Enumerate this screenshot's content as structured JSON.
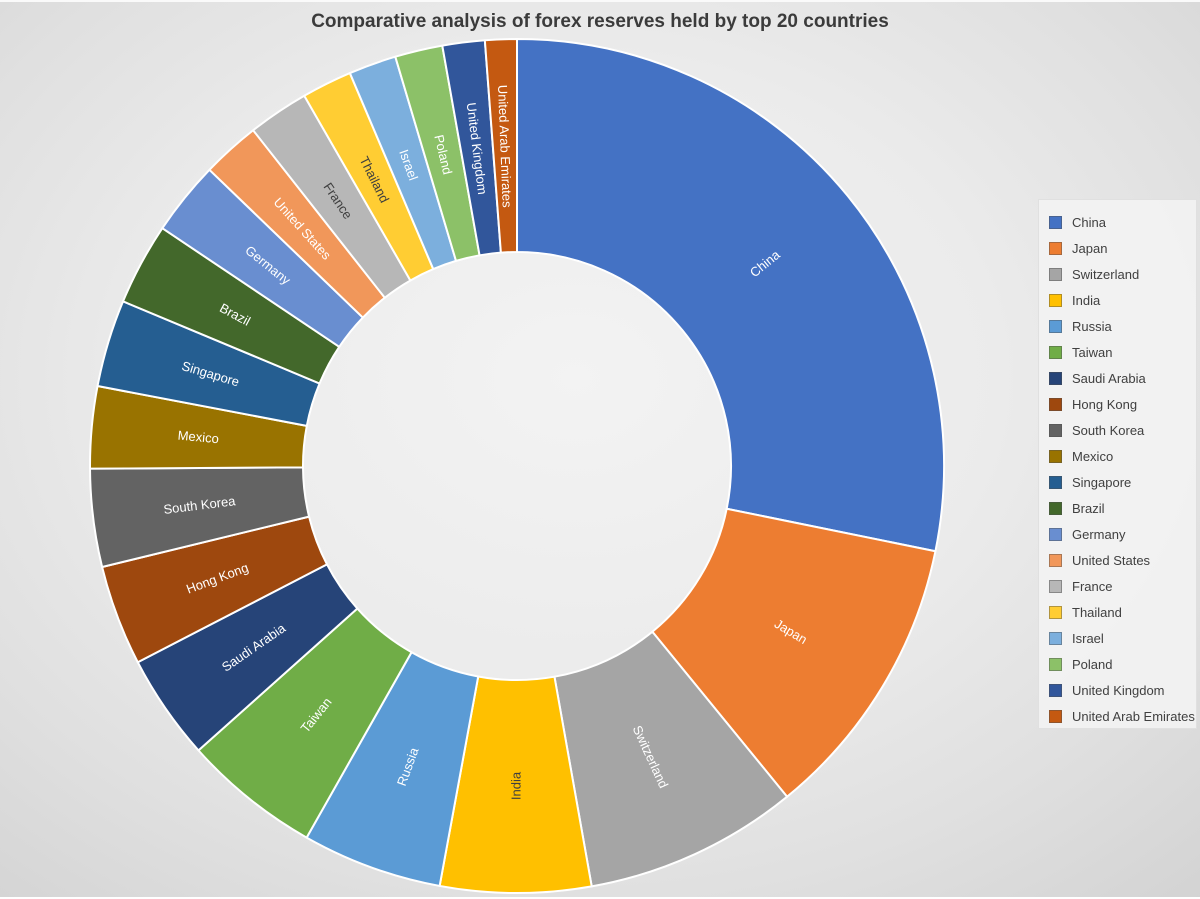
{
  "chart_data": {
    "type": "pie",
    "subtype": "donut",
    "title": "Comparative analysis of forex reserves held by top 20 countries",
    "legend_position": "right",
    "start_angle_deg": 0,
    "direction": "clockwise",
    "donut_hole_ratio": 0.5,
    "slice_border_color": "#FFFFFF",
    "series": [
      {
        "name": "China",
        "value_percent": 28.2,
        "color": "#4472C4",
        "label_color": "#FFFFFF"
      },
      {
        "name": "Japan",
        "value_percent": 10.9,
        "color": "#ED7D31",
        "label_color": "#FFFFFF"
      },
      {
        "name": "Switzerland",
        "value_percent": 8.1,
        "color": "#A5A5A5",
        "label_color": "#FFFFFF"
      },
      {
        "name": "India",
        "value_percent": 5.7,
        "color": "#FFC000",
        "label_color": "#3F3F3F"
      },
      {
        "name": "Russia",
        "value_percent": 5.3,
        "color": "#5B9BD5",
        "label_color": "#FFFFFF"
      },
      {
        "name": "Taiwan",
        "value_percent": 5.2,
        "color": "#70AD47",
        "label_color": "#FFFFFF"
      },
      {
        "name": "Saudi Arabia",
        "value_percent": 4.0,
        "color": "#264478",
        "label_color": "#FFFFFF"
      },
      {
        "name": "Hong Kong",
        "value_percent": 3.8,
        "color": "#9E480E",
        "label_color": "#FFFFFF"
      },
      {
        "name": "South Korea",
        "value_percent": 3.7,
        "color": "#636363",
        "label_color": "#FFFFFF"
      },
      {
        "name": "Mexico",
        "value_percent": 3.1,
        "color": "#997300",
        "label_color": "#FFFFFF"
      },
      {
        "name": "Singapore",
        "value_percent": 3.3,
        "color": "#255E91",
        "label_color": "#FFFFFF"
      },
      {
        "name": "Brazil",
        "value_percent": 3.1,
        "color": "#43682B",
        "label_color": "#FFFFFF"
      },
      {
        "name": "Germany",
        "value_percent": 2.8,
        "color": "#698ED0",
        "label_color": "#FFFFFF"
      },
      {
        "name": "United States",
        "value_percent": 2.2,
        "color": "#F1975A",
        "label_color": "#FFFFFF"
      },
      {
        "name": "France",
        "value_percent": 2.3,
        "color": "#B7B7B7",
        "label_color": "#3F3F3F"
      },
      {
        "name": "Thailand",
        "value_percent": 1.9,
        "color": "#FFCD33",
        "label_color": "#3F3F3F"
      },
      {
        "name": "Israel",
        "value_percent": 1.8,
        "color": "#7CAFDD",
        "label_color": "#FFFFFF"
      },
      {
        "name": "Poland",
        "value_percent": 1.8,
        "color": "#8CC168",
        "label_color": "#FFFFFF"
      },
      {
        "name": "United Kingdom",
        "value_percent": 1.6,
        "color": "#31569B",
        "label_color": "#FFFFFF"
      },
      {
        "name": "United Arab Emirates",
        "value_percent": 1.2,
        "color": "#C45911",
        "label_color": "#FFFFFF"
      }
    ]
  },
  "style": {
    "background_center": "#F3F3F3",
    "background_edge": "#D2D2D2",
    "legend_background": "#F3F3F3",
    "legend_text_color": "#404040",
    "title_color": "#3B3B3B"
  }
}
